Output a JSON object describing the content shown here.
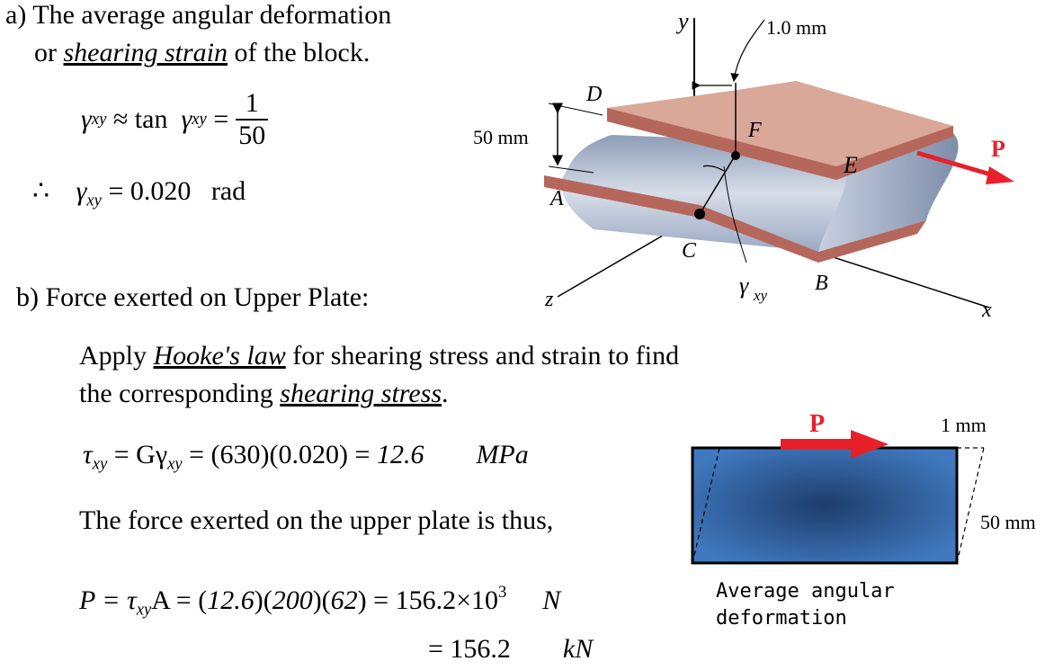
{
  "part_a": {
    "line1": "a) The average angular deformation",
    "line2_pre": "or ",
    "line2_term": "shearing strain",
    "line2_post": " of the block.",
    "eq1_gamma": "γ",
    "eq1_sub": "xy",
    "eq1_mid": " ≈ tan  ",
    "eq1_eq": " =",
    "eq1_num": "1",
    "eq1_den": "50",
    "therefore": "∴",
    "result": " = 0.020   rad"
  },
  "part_b": {
    "heading": "b) Force exerted on Upper Plate:",
    "apply_pre": "Apply ",
    "apply_term": "Hooke's law",
    "apply_post": " for shearing stress and strain to find",
    "corr_pre": "the corresponding ",
    "corr_term": "shearing stress",
    "corr_post": ".",
    "tau": "τ",
    "tau_sub": "xy",
    "tau_eq": " = Gγ",
    "tau_calc": " = (630)(0.020) = ",
    "tau_val": "12.6",
    "tau_unit": "MPa",
    "force_text": "The force exerted on the upper plate is thus,",
    "p_lhs": "P = τ",
    "p_sub": "xy",
    "p_a": "A = (",
    "p_126": "12.6",
    "p_mid1": ")(",
    "p_200": "200",
    "p_mid2": ")(",
    "p_62": "62",
    "p_rhs": ") = 156.2×10",
    "p_exp": "3",
    "p_unit": "N",
    "p_eq2": "= 156.2",
    "p_unit2": "kN"
  },
  "figure_block": {
    "label_y": "y",
    "label_x": "x",
    "label_z": "z",
    "label_d": "D",
    "label_a": "A",
    "label_c": "C",
    "label_b": "B",
    "label_e": "E",
    "label_f": "F",
    "label_p": "P",
    "dim_top": "1.0  mm",
    "dim_side": "50 mm",
    "gamma": "γ",
    "gamma_sub": "xy",
    "top_plate_color": "#d9a898",
    "plate_edge_color": "#b5675c",
    "block_color": "#aab6cc",
    "arrow_color": "#e8202a"
  },
  "figure_rect": {
    "label_p": "P",
    "dim_top": "1 mm",
    "dim_side": "50 mm",
    "caption_line1": "Average angular",
    "caption_line2": "deformation",
    "fill_color": "#3f72b5",
    "arrow_color": "#e8202a"
  }
}
